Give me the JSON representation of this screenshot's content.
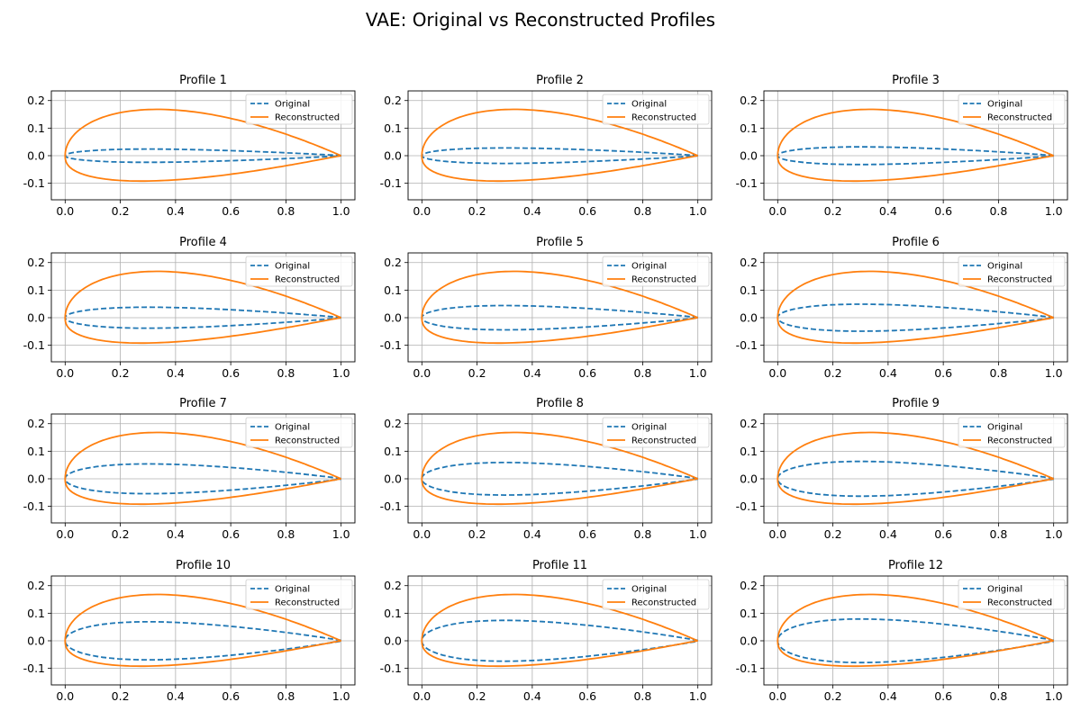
{
  "figure": {
    "title": "VAE: Original vs Reconstructed Profiles"
  },
  "colors": {
    "original": "#1f77b4",
    "reconstructed": "#ff7f0e",
    "grid": "#b0b0b0",
    "axis": "#000000"
  },
  "legend": {
    "original_label": "Original",
    "reconstructed_label": "Reconstructed",
    "placement": "upper-right"
  },
  "axes": {
    "xlim": [
      -0.05,
      1.05
    ],
    "ylim": [
      -0.16,
      0.235
    ],
    "xticks": [
      "0.0",
      "0.2",
      "0.4",
      "0.6",
      "0.8",
      "1.0"
    ],
    "xtick_values": [
      0,
      0.2,
      0.4,
      0.6,
      0.8,
      1.0
    ],
    "yticks": [
      "0.2",
      "0.1",
      "0.0",
      "-0.1"
    ],
    "ytick_values": [
      0.2,
      0.1,
      0.0,
      -0.1
    ],
    "grid": true
  },
  "chart_data": [
    {
      "type": "line",
      "title": "Profile 1",
      "series": [
        {
          "name": "Original",
          "style": "dashed",
          "max_thickness": 0.048
        },
        {
          "name": "Reconstructed",
          "style": "solid",
          "upper_peak": [
            0.35,
            0.168
          ],
          "lower_trough": [
            0.28,
            -0.092
          ]
        }
      ]
    },
    {
      "type": "line",
      "title": "Profile 2",
      "series": [
        {
          "name": "Original",
          "style": "dashed",
          "max_thickness": 0.056
        },
        {
          "name": "Reconstructed",
          "style": "solid",
          "upper_peak": [
            0.35,
            0.168
          ],
          "lower_trough": [
            0.28,
            -0.092
          ]
        }
      ]
    },
    {
      "type": "line",
      "title": "Profile 3",
      "series": [
        {
          "name": "Original",
          "style": "dashed",
          "max_thickness": 0.064
        },
        {
          "name": "Reconstructed",
          "style": "solid",
          "upper_peak": [
            0.35,
            0.168
          ],
          "lower_trough": [
            0.28,
            -0.092
          ]
        }
      ]
    },
    {
      "type": "line",
      "title": "Profile 4",
      "series": [
        {
          "name": "Original",
          "style": "dashed",
          "max_thickness": 0.076
        },
        {
          "name": "Reconstructed",
          "style": "solid",
          "upper_peak": [
            0.35,
            0.168
          ],
          "lower_trough": [
            0.28,
            -0.092
          ]
        }
      ]
    },
    {
      "type": "line",
      "title": "Profile 5",
      "series": [
        {
          "name": "Original",
          "style": "dashed",
          "max_thickness": 0.088
        },
        {
          "name": "Reconstructed",
          "style": "solid",
          "upper_peak": [
            0.35,
            0.168
          ],
          "lower_trough": [
            0.28,
            -0.092
          ]
        }
      ]
    },
    {
      "type": "line",
      "title": "Profile 6",
      "series": [
        {
          "name": "Original",
          "style": "dashed",
          "max_thickness": 0.098
        },
        {
          "name": "Reconstructed",
          "style": "solid",
          "upper_peak": [
            0.35,
            0.168
          ],
          "lower_trough": [
            0.28,
            -0.092
          ]
        }
      ]
    },
    {
      "type": "line",
      "title": "Profile 7",
      "series": [
        {
          "name": "Original",
          "style": "dashed",
          "max_thickness": 0.108
        },
        {
          "name": "Reconstructed",
          "style": "solid",
          "upper_peak": [
            0.35,
            0.168
          ],
          "lower_trough": [
            0.28,
            -0.092
          ]
        }
      ]
    },
    {
      "type": "line",
      "title": "Profile 8",
      "series": [
        {
          "name": "Original",
          "style": "dashed",
          "max_thickness": 0.118
        },
        {
          "name": "Reconstructed",
          "style": "solid",
          "upper_peak": [
            0.35,
            0.168
          ],
          "lower_trough": [
            0.28,
            -0.092
          ]
        }
      ]
    },
    {
      "type": "line",
      "title": "Profile 9",
      "series": [
        {
          "name": "Original",
          "style": "dashed",
          "max_thickness": 0.126
        },
        {
          "name": "Reconstructed",
          "style": "solid",
          "upper_peak": [
            0.35,
            0.168
          ],
          "lower_trough": [
            0.28,
            -0.092
          ]
        }
      ]
    },
    {
      "type": "line",
      "title": "Profile 10",
      "series": [
        {
          "name": "Original",
          "style": "dashed",
          "max_thickness": 0.138
        },
        {
          "name": "Reconstructed",
          "style": "solid",
          "upper_peak": [
            0.35,
            0.168
          ],
          "lower_trough": [
            0.28,
            -0.092
          ]
        }
      ]
    },
    {
      "type": "line",
      "title": "Profile 11",
      "series": [
        {
          "name": "Original",
          "style": "dashed",
          "max_thickness": 0.148
        },
        {
          "name": "Reconstructed",
          "style": "solid",
          "upper_peak": [
            0.35,
            0.168
          ],
          "lower_trough": [
            0.28,
            -0.092
          ]
        }
      ]
    },
    {
      "type": "line",
      "title": "Profile 12",
      "series": [
        {
          "name": "Original",
          "style": "dashed",
          "max_thickness": 0.158
        },
        {
          "name": "Reconstructed",
          "style": "solid",
          "upper_peak": [
            0.35,
            0.168
          ],
          "lower_trough": [
            0.28,
            -0.092
          ]
        }
      ]
    }
  ]
}
